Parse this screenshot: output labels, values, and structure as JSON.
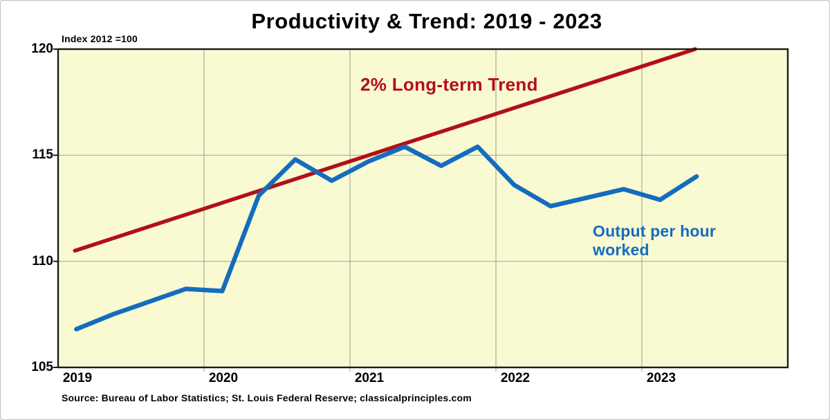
{
  "title": "Productivity & Trend: 2019 - 2023",
  "axis_note": "Index 2012 =100",
  "source": "Source: Bureau of Labor Statistics; St. Louis Federal Reserve; classicalprinciples.com",
  "annotations": {
    "trend_label": "2% Long-term Trend",
    "series_label": "Output per hour worked"
  },
  "colors": {
    "plot_background": "#f9f9d2",
    "page_background": "#ffffff",
    "blue": "#146cbe",
    "red": "#b30f16",
    "gridline": "#ababa0",
    "axis": "#1a1a1a",
    "text": "#000000"
  },
  "chart_data": {
    "type": "line",
    "title": "Productivity & Trend: 2019 - 2023",
    "xlabel": "",
    "ylabel": "Index 2012 =100",
    "xlim": [
      2019,
      2024
    ],
    "ylim": [
      105,
      120
    ],
    "y_ticks": [
      105,
      110,
      115,
      120
    ],
    "x_ticks": [
      2019,
      2020,
      2021,
      2022,
      2023
    ],
    "grid_y_values": [
      110,
      115
    ],
    "grid_x_values": [
      2020,
      2021,
      2022,
      2023
    ],
    "legend_position": "none",
    "series": [
      {
        "name": "Output per hour worked",
        "color_key": "blue",
        "quarters": [
          "2019 Q1",
          "2019 Q2",
          "2019 Q3",
          "2019 Q4",
          "2020 Q1",
          "2020 Q2",
          "2020 Q3",
          "2020 Q4",
          "2021 Q1",
          "2021 Q2",
          "2021 Q3",
          "2021 Q4",
          "2022 Q1",
          "2022 Q2",
          "2022 Q3",
          "2022 Q4",
          "2023 Q1",
          "2023 Q2"
        ],
        "x": [
          2019.125,
          2019.375,
          2019.625,
          2019.875,
          2020.125,
          2020.375,
          2020.625,
          2020.875,
          2021.125,
          2021.375,
          2021.625,
          2021.875,
          2022.125,
          2022.375,
          2022.625,
          2022.875,
          2023.125,
          2023.375
        ],
        "values": [
          106.8,
          107.5,
          108.1,
          108.7,
          108.6,
          113.1,
          114.8,
          113.8,
          114.7,
          115.4,
          114.5,
          115.4,
          113.6,
          112.6,
          113.0,
          113.4,
          112.9,
          114.0
        ]
      },
      {
        "name": "2% Long-term Trend",
        "color_key": "red",
        "x": [
          2019.115,
          2023.365
        ],
        "values": [
          110.5,
          120.0
        ]
      }
    ]
  }
}
